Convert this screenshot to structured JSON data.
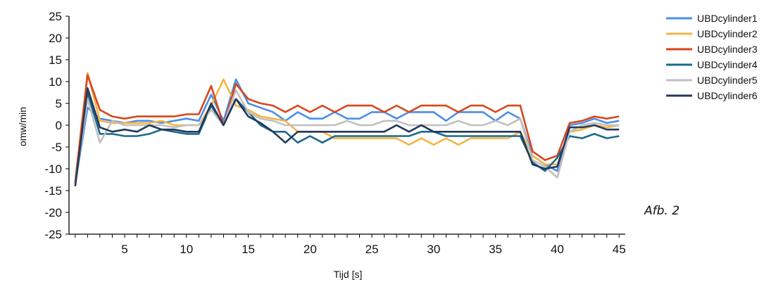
{
  "chart_data": {
    "type": "line",
    "xlabel": "Tijd [s]",
    "ylabel": "omw/min",
    "ylim": [
      -25,
      25
    ],
    "yticks": [
      25,
      20,
      15,
      10,
      5,
      0,
      -5,
      -10,
      -15,
      -20,
      -25
    ],
    "xlim": [
      0.5,
      45.5
    ],
    "xticks": [
      5,
      10,
      15,
      20,
      25,
      30,
      35,
      40,
      45
    ],
    "x": [
      1,
      2,
      3,
      4,
      5,
      6,
      7,
      8,
      9,
      10,
      11,
      12,
      13,
      14,
      15,
      16,
      17,
      18,
      19,
      20,
      21,
      22,
      23,
      24,
      25,
      26,
      27,
      28,
      29,
      30,
      31,
      32,
      33,
      34,
      35,
      36,
      37,
      38,
      39,
      40,
      41,
      42,
      43,
      44,
      45
    ],
    "legend_position": "top-right",
    "series": [
      {
        "name": "UBDcylinder1",
        "color": "#4c8ee8",
        "values": [
          -13.5,
          4,
          1.5,
          1,
          0.5,
          1,
          1,
          0.5,
          1,
          1.5,
          1,
          7,
          1,
          10.5,
          5,
          4,
          3,
          1,
          3,
          1.5,
          1.5,
          3,
          1.5,
          1.5,
          3,
          3,
          1.5,
          3,
          3,
          3,
          1,
          3,
          3,
          3,
          1,
          3,
          1.5,
          -7,
          -9,
          -10.5,
          0,
          0.5,
          1.5,
          0.5,
          1
        ]
      },
      {
        "name": "UBDcylinder2",
        "color": "#f6b443",
        "values": [
          -13,
          12,
          1,
          0.5,
          0.5,
          0.5,
          0.5,
          1,
          0,
          0,
          0,
          4.5,
          10.5,
          4.5,
          3.5,
          2,
          1.5,
          1,
          -1.5,
          -1.5,
          -1.5,
          -3,
          -3,
          -3,
          -3,
          -3,
          -3,
          -4.5,
          -3,
          -4.5,
          -3,
          -4.5,
          -3,
          -3,
          -3,
          -3,
          -1.5,
          -7,
          -9,
          -9,
          -1.5,
          -1,
          0,
          -0.5,
          0
        ]
      },
      {
        "name": "UBDcylinder3",
        "color": "#d8461b",
        "values": [
          -13,
          11.5,
          3.5,
          2,
          1.5,
          2,
          2,
          2,
          2,
          2.5,
          2.5,
          9,
          0,
          9.5,
          6,
          5,
          4.5,
          3,
          4.5,
          3,
          4.5,
          3,
          4.5,
          4.5,
          4.5,
          3,
          4.5,
          3,
          4.5,
          4.5,
          4.5,
          3,
          4.5,
          4.5,
          3,
          4.5,
          4.5,
          -6,
          -8,
          -7,
          0.5,
          1,
          2,
          1.5,
          2
        ]
      },
      {
        "name": "UBDcylinder4",
        "color": "#1a6a8c",
        "values": [
          -13.5,
          7.5,
          -2,
          -2,
          -2.5,
          -2.5,
          -2,
          -1,
          -1.5,
          -2,
          -2,
          4.5,
          0,
          6,
          3,
          0,
          -1.5,
          -1.5,
          -4,
          -2.5,
          -4,
          -2.5,
          -2.5,
          -2.5,
          -2.5,
          -2.5,
          -2.5,
          -2.5,
          -1.5,
          -1.5,
          -2.5,
          -2.5,
          -2.5,
          -2.5,
          -2.5,
          -2.5,
          -2.5,
          -8.5,
          -10.5,
          -7.5,
          -2.5,
          -3,
          -2,
          -3,
          -2.5
        ]
      },
      {
        "name": "UBDcylinder5",
        "color": "#c0c0c0",
        "values": [
          -13.5,
          6,
          -4,
          1,
          0,
          0,
          0,
          0,
          -0.5,
          0,
          0,
          3.5,
          0,
          8,
          3,
          1.5,
          1,
          0,
          0,
          0,
          0,
          0,
          1,
          0,
          0,
          1,
          1,
          0,
          0,
          0,
          0,
          1,
          0,
          0,
          1,
          0,
          1.5,
          -8,
          -9.5,
          -12,
          -1.5,
          0,
          0.5,
          0,
          0
        ]
      },
      {
        "name": "UBDcylinder6",
        "color": "#23395b",
        "values": [
          -14,
          8.5,
          -0.5,
          -1.5,
          -1,
          -1.5,
          0,
          -1,
          -1,
          -1.5,
          -1.5,
          5,
          0,
          6,
          2,
          0.5,
          -1.5,
          -4,
          -1.5,
          -1.5,
          -1.5,
          -1.5,
          -1.5,
          -1.5,
          -1.5,
          -1.5,
          0,
          -1.5,
          0,
          -1.5,
          -1.5,
          -1.5,
          -1.5,
          -1.5,
          -1.5,
          -1.5,
          -1.5,
          -9,
          -10,
          -9.5,
          -0.5,
          -0.5,
          0,
          -1,
          -1
        ]
      }
    ]
  },
  "caption": "Afb. 2"
}
